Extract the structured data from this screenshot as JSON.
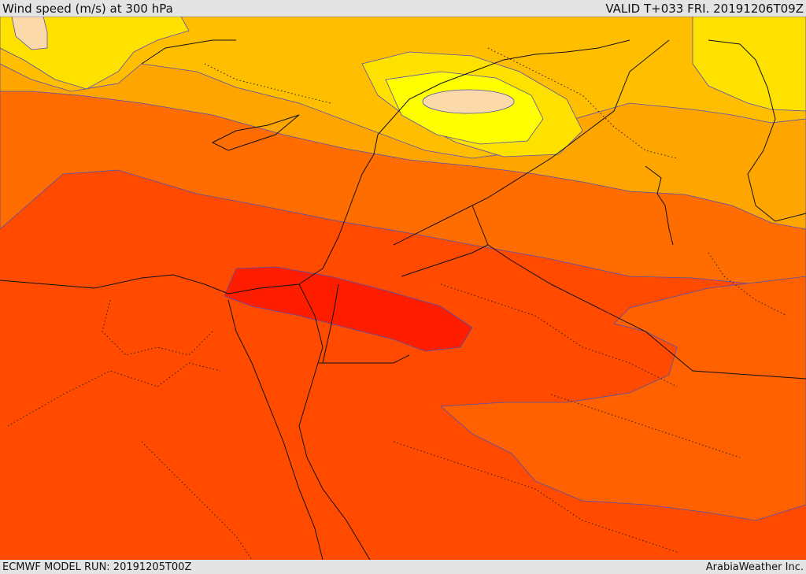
{
  "header": {
    "title": "Wind speed (m/s) at 300 hPa",
    "valid": "VALID T+033 FRI. 20191206T09Z"
  },
  "footer": {
    "model_run": "ECMWF MODEL RUN: 20191205T00Z",
    "credit": "ArabiaWeather Inc."
  },
  "colors": {
    "peach": "#fcd9a8",
    "bright_yellow": "#ffff00",
    "yellow": "#ffe100",
    "gold": "#ffbf00",
    "amber": "#ffa500",
    "dark_orange": "#ff6c00",
    "orange_red": "#ff4a00",
    "red_orange": "#ff3e00",
    "red": "#ff1d00"
  }
}
